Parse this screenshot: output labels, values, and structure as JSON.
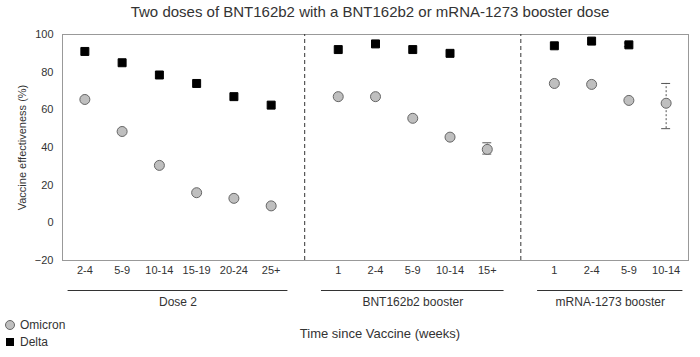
{
  "chart_data": {
    "type": "scatter",
    "title": "Two doses of BNT162b2 with a BNT162b2 or mRNA-1273 booster dose",
    "x_label": "Time since Vaccine (weeks)",
    "y_label": "Vaccine effectiveness (%)",
    "groups": [
      {
        "label": "Dose 2",
        "categories": [
          "2-4",
          "5-9",
          "10-14",
          "15-19",
          "20-24",
          "25+"
        ]
      },
      {
        "label": "BNT162b2 booster",
        "categories": [
          "1",
          "2-4",
          "5-9",
          "10-14",
          "15+"
        ]
      },
      {
        "label": "mRNA-1273 booster",
        "categories": [
          "1",
          "2-4",
          "5-9",
          "10-14"
        ]
      }
    ],
    "series": [
      {
        "name": "Omicron",
        "color": "#bfbfbf",
        "marker": "circle",
        "values": [
          65.5,
          48.5,
          30.5,
          16,
          13,
          9,
          67,
          67,
          55.5,
          45.5,
          39,
          74,
          73.5,
          65,
          63.5
        ],
        "error_low": [
          null,
          null,
          null,
          null,
          null,
          null,
          null,
          null,
          null,
          null,
          36.5,
          null,
          null,
          null,
          50
        ],
        "error_high": [
          null,
          null,
          null,
          null,
          null,
          null,
          null,
          null,
          null,
          null,
          42.5,
          null,
          null,
          null,
          74
        ]
      },
      {
        "name": "Delta",
        "color": "#000000",
        "marker": "square",
        "values": [
          91,
          85,
          78.5,
          74,
          67,
          62.5,
          92,
          95,
          92,
          90,
          null,
          94,
          96.5,
          94.5,
          null
        ],
        "error_low": [
          null,
          null,
          null,
          null,
          null,
          null,
          null,
          null,
          null,
          null,
          null,
          null,
          null,
          93.5,
          null
        ],
        "error_high": [
          null,
          null,
          null,
          null,
          null,
          null,
          null,
          null,
          null,
          null,
          null,
          null,
          null,
          95.5,
          null
        ]
      }
    ],
    "ylim": [
      -20,
      100
    ],
    "yticks": [
      -20,
      0,
      20,
      40,
      60,
      80,
      100
    ],
    "grid": false,
    "legend": "bottom-left"
  }
}
